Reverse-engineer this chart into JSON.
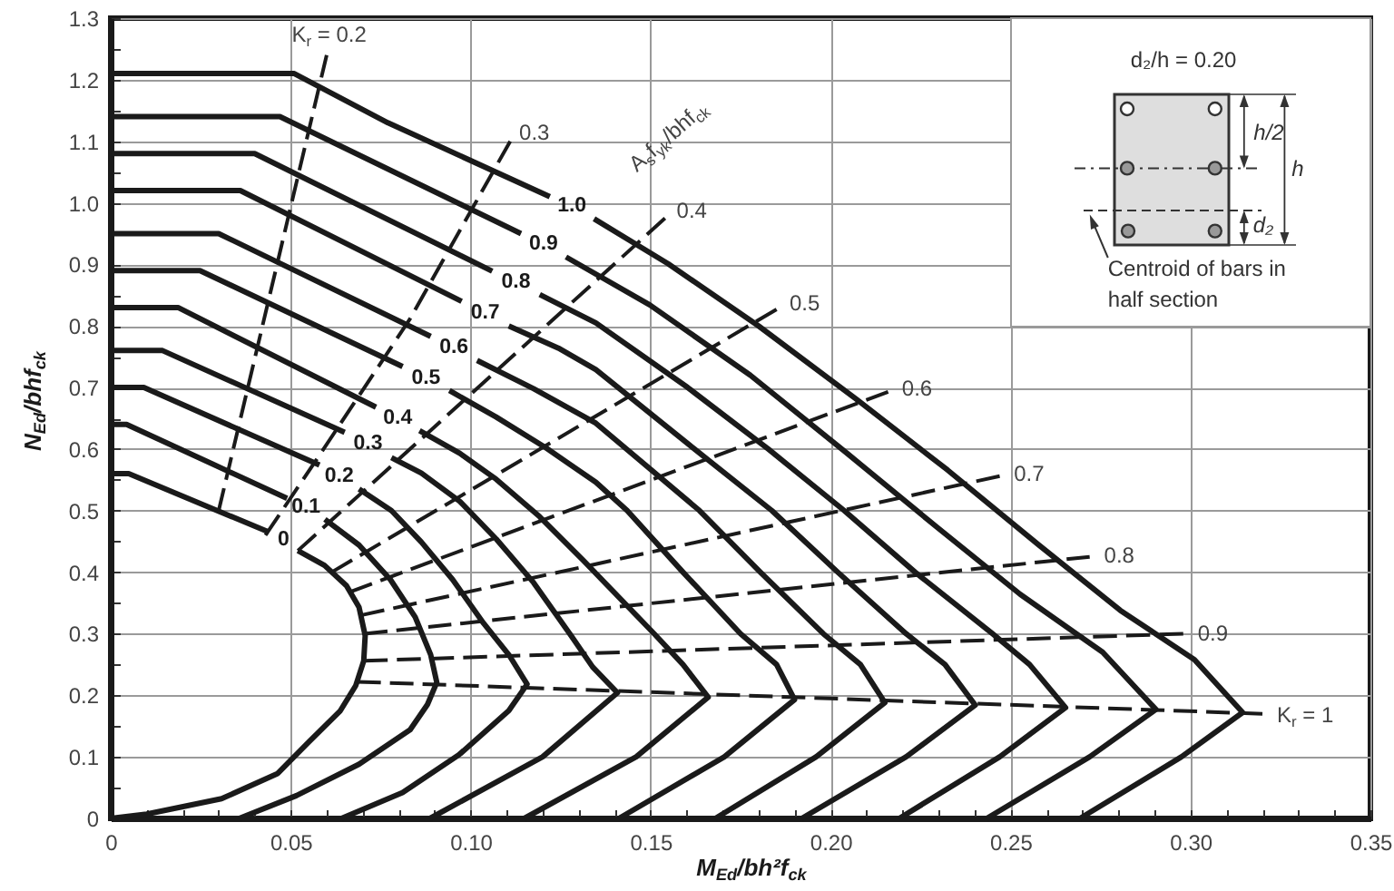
{
  "chart_data": {
    "type": "line",
    "xlabel": "M$_{Ed}$/bh²f$_{ck}$",
    "ylabel": "N$_{Ed}$/bhf$_{ck}$",
    "xlim": [
      0,
      0.35
    ],
    "ylim": [
      0,
      1.3
    ],
    "xticks": [
      0,
      {
        "value": 0.01,
        "label": null
      },
      {
        "value": 0.02,
        "label": null
      },
      {
        "value": 0.03,
        "label": null
      },
      {
        "value": 0.04,
        "label": null
      },
      0.05,
      {
        "value": 0.06,
        "label": null
      },
      {
        "value": 0.07,
        "label": null
      },
      {
        "value": 0.08,
        "label": null
      },
      {
        "value": 0.09,
        "label": null
      },
      {
        "value": 0.1,
        "label": "0.10"
      },
      {
        "value": 0.11,
        "label": null
      },
      {
        "value": 0.12,
        "label": null
      },
      {
        "value": 0.13,
        "label": null
      },
      {
        "value": 0.14,
        "label": null
      },
      0.15,
      {
        "value": 0.16,
        "label": null
      },
      {
        "value": 0.17,
        "label": null
      },
      {
        "value": 0.18,
        "label": null
      },
      {
        "value": 0.19,
        "label": null
      },
      {
        "value": 0.2,
        "label": "0.20"
      },
      {
        "value": 0.21,
        "label": null
      },
      {
        "value": 0.22,
        "label": null
      },
      {
        "value": 0.23,
        "label": null
      },
      {
        "value": 0.24,
        "label": null
      },
      0.25,
      {
        "value": 0.26,
        "label": null
      },
      {
        "value": 0.27,
        "label": null
      },
      {
        "value": 0.28,
        "label": null
      },
      {
        "value": 0.29,
        "label": null
      },
      {
        "value": 0.3,
        "label": "0.30"
      },
      {
        "value": 0.31,
        "label": null
      },
      {
        "value": 0.32,
        "label": null
      },
      {
        "value": 0.33,
        "label": null
      },
      {
        "value": 0.34,
        "label": null
      },
      0.35
    ],
    "yticks": [
      0,
      {
        "value": 0.05,
        "label": null
      },
      0.1,
      {
        "value": 0.15,
        "label": null
      },
      0.2,
      {
        "value": 0.25,
        "label": null
      },
      0.3,
      {
        "value": 0.35,
        "label": null
      },
      0.4,
      {
        "value": 0.45,
        "label": null
      },
      0.5,
      {
        "value": 0.55,
        "label": null
      },
      0.6,
      {
        "value": 0.65,
        "label": null
      },
      0.7,
      {
        "value": 0.75,
        "label": null
      },
      0.8,
      {
        "value": 0.85,
        "label": null
      },
      0.9,
      {
        "value": 0.95,
        "label": null
      },
      {
        "value": 1,
        "label": "1.0"
      },
      {
        "value": 1.05,
        "label": null
      },
      1.1,
      {
        "value": 1.15,
        "label": null
      },
      1.2,
      {
        "value": 1.25,
        "label": null
      },
      1.3
    ],
    "grid": true,
    "annotations": [
      "A$_{s}$f$_{yk}$/bhf$_{ck}$",
      "d₂/h = 0.20",
      "h/2",
      "h",
      "d₂",
      "Centroid of bars in half section"
    ],
    "series": [
      {
        "name": "0",
        "color": "#1a1a1a",
        "x": [
          0,
          0.005,
          0.044,
          0.048,
          0.052,
          0.0594,
          0.0655,
          0.069,
          0.0707,
          0.0703,
          0.0681,
          0.0638,
          0.055,
          0.0464,
          0.0308,
          0.01,
          0
        ],
        "values": [
          0.56,
          0.56,
          0.465,
          null,
          0.435,
          0.411,
          0.378,
          0.343,
          0.297,
          0.256,
          0.216,
          0.175,
          0.124,
          0.073,
          0.032,
          0.007,
          0
        ]
      },
      {
        "name": "0.1",
        "color": "#1a1a1a",
        "x": [
          0,
          0.0044,
          0.049,
          0.0543,
          0.0595,
          0.069,
          0.0777,
          0.0846,
          0.0889,
          0.0906,
          0.088,
          0.0832,
          0.069,
          0.0516,
          0.0357
        ],
        "values": [
          0.64,
          0.64,
          0.52,
          null,
          0.486,
          0.444,
          0.388,
          0.327,
          0.266,
          0.221,
          0.185,
          0.144,
          0.088,
          0.037,
          0
        ]
      },
      {
        "name": "0.2",
        "color": "#1a1a1a",
        "x": [
          0,
          0.0092,
          0.058,
          0.0635,
          0.069,
          0.078,
          0.0863,
          0.095,
          0.1036,
          0.1106,
          0.1157,
          0.1106,
          0.0967,
          0.0811,
          0.0641
        ],
        "values": [
          0.7,
          0.7,
          0.574,
          null,
          0.535,
          0.5,
          0.449,
          0.388,
          0.317,
          0.266,
          0.218,
          0.175,
          0.103,
          0.042,
          0
        ]
      },
      {
        "name": "0.3",
        "color": "#1a1a1a",
        "x": [
          0,
          0.0144,
          0.065,
          0.0715,
          0.078,
          0.0863,
          0.097,
          0.1071,
          0.1175,
          0.1279,
          0.1339,
          0.1408,
          0.12,
          0.0887
        ],
        "values": [
          0.76,
          0.76,
          0.627,
          null,
          0.586,
          0.561,
          0.515,
          0.454,
          0.383,
          0.297,
          0.246,
          0.204,
          0.1,
          0
        ]
      },
      {
        "name": "0.4",
        "color": "#1a1a1a",
        "x": [
          0,
          0.0187,
          0.0737,
          0.0798,
          0.0858,
          0.097,
          0.1071,
          0.1192,
          0.1313,
          0.151,
          0.159,
          0.166,
          0.146,
          0.1149
        ],
        "values": [
          0.83,
          0.83,
          0.668,
          null,
          0.63,
          0.593,
          0.551,
          0.49,
          0.419,
          0.3,
          0.25,
          0.197,
          0.1,
          0
        ]
      },
      {
        "name": "0.5",
        "color": "#1a1a1a",
        "x": [
          0,
          0.0248,
          0.0811,
          0.0876,
          0.0941,
          0.1071,
          0.1209,
          0.1348,
          0.1435,
          0.159,
          0.175,
          0.185,
          0.19,
          0.1705,
          0.1412
        ],
        "values": [
          0.89,
          0.89,
          0.734,
          null,
          0.695,
          0.652,
          0.602,
          0.546,
          0.5,
          0.4,
          0.3,
          0.25,
          0.193,
          0.1,
          0
        ]
      },
      {
        "name": "0.6",
        "color": "#1a1a1a",
        "x": [
          0,
          0.03,
          0.0889,
          0.0954,
          0.1018,
          0.1175,
          0.1348,
          0.1636,
          0.1805,
          0.198,
          0.2083,
          0.2151,
          0.196,
          0.168
        ],
        "values": [
          0.95,
          0.95,
          0.783,
          null,
          0.744,
          0.698,
          0.642,
          0.5,
          0.4,
          0.3,
          0.25,
          0.188,
          0.1,
          0
        ]
      },
      {
        "name": "0.7",
        "color": "#1a1a1a",
        "x": [
          0,
          0.036,
          0.0975,
          0.104,
          0.1106,
          0.1244,
          0.1348,
          0.1622,
          0.1837,
          0.202,
          0.221,
          0.2318,
          0.2402,
          0.221,
          0.192
        ],
        "values": [
          1.02,
          1.02,
          0.84,
          null,
          0.8,
          0.764,
          0.729,
          0.6,
          0.5,
          0.4,
          0.3,
          0.25,
          0.184,
          0.1,
          0
        ]
      },
      {
        "name": "0.8",
        "color": "#1a1a1a",
        "x": [
          0,
          0.04,
          0.106,
          0.1126,
          0.1192,
          0.1348,
          0.1603,
          0.1827,
          0.2038,
          0.2235,
          0.245,
          0.2553,
          0.2653,
          0.247,
          0.2191
        ],
        "values": [
          1.08,
          1.08,
          0.889,
          null,
          0.851,
          0.805,
          0.7,
          0.6,
          0.5,
          0.4,
          0.3,
          0.25,
          0.18,
          0.1,
          0
        ]
      },
      {
        "name": "0.9",
        "color": "#1a1a1a",
        "x": [
          0,
          0.047,
          0.114,
          0.1203,
          0.1265,
          0.1498,
          0.1777,
          0.2046,
          0.2298,
          0.2527,
          0.2683,
          0.2756,
          0.2904,
          0.272,
          0.2434
        ],
        "values": [
          1.14,
          1.14,
          0.95,
          null,
          0.912,
          0.834,
          0.72,
          0.593,
          0.472,
          0.364,
          0.3,
          0.27,
          0.177,
          0.1,
          0
        ]
      },
      {
        "name": "1.0",
        "color": "#1a1a1a",
        "x": [
          0,
          0.051,
          0.077,
          0.122,
          0.1282,
          0.1343,
          0.1549,
          0.18,
          0.2074,
          0.2325,
          0.2577,
          0.2805,
          0.3011,
          0.3145,
          0.2975,
          0.2693
        ],
        "values": [
          1.21,
          1.21,
          1.13,
          1.01,
          null,
          0.974,
          0.901,
          0.8,
          0.68,
          0.566,
          0.445,
          0.338,
          0.258,
          0.172,
          0.1,
          0
        ]
      },
      {
        "name": "K$_{r}$ = 0.2",
        "color": "#1a1a1a",
        "line_style": "dashed",
        "x": [
          0.03,
          0.06
        ],
        "values": [
          0.5,
          1.24
        ]
      },
      {
        "name": "0.3",
        "color": "#1a1a1a",
        "line_style": "dashed",
        "x": [
          0.043,
          0.058,
          0.083,
          0.111
        ],
        "values": [
          0.46,
          0.59,
          0.81,
          1.1
        ]
      },
      {
        "name": "0.4",
        "color": "#1a1a1a",
        "line_style": "dashed",
        "x": [
          0.052,
          0.154
        ],
        "values": [
          0.435,
          0.975
        ]
      },
      {
        "name": "0.5",
        "color": "#1a1a1a",
        "line_style": "dashed",
        "x": [
          0.0614,
          0.185
        ],
        "values": [
          0.4,
          0.827
        ]
      },
      {
        "name": "0.6",
        "color": "#1a1a1a",
        "line_style": "dashed",
        "x": [
          0.0665,
          0.216
        ],
        "values": [
          0.368,
          0.693
        ]
      },
      {
        "name": "0.7",
        "color": "#1a1a1a",
        "line_style": "dashed",
        "x": [
          0.0695,
          0.247
        ],
        "values": [
          0.33,
          0.556
        ]
      },
      {
        "name": "0.8",
        "color": "#1a1a1a",
        "line_style": "dashed",
        "x": [
          0.0705,
          0.272
        ],
        "values": [
          0.3,
          0.425
        ]
      },
      {
        "name": "0.9",
        "color": "#1a1a1a",
        "line_style": "dashed",
        "x": [
          0.0703,
          0.298
        ],
        "values": [
          0.256,
          0.3
        ]
      },
      {
        "name": "K$_{r}$ = 1",
        "color": "#1a1a1a",
        "line_style": "dashed",
        "x": [
          0.0685,
          0.32
        ],
        "values": [
          0.222,
          0.17
        ]
      }
    ]
  }
}
